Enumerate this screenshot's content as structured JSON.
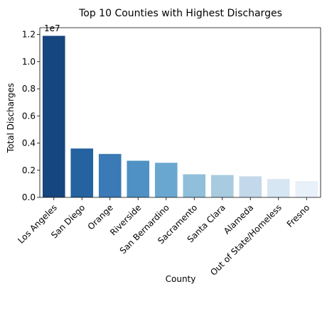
{
  "chart_data": {
    "type": "bar",
    "title": "Top 10 Counties with Highest Discharges",
    "xlabel": "County",
    "ylabel": "Total Discharges",
    "offset_text": "1e7",
    "ylim": [
      0,
      1.25
    ],
    "yticks": [
      0.0,
      0.2,
      0.4,
      0.6,
      0.8,
      1.0,
      1.2
    ],
    "ytick_labels": [
      "0.0",
      "0.2",
      "0.4",
      "0.6",
      "0.8",
      "1.0",
      "1.2"
    ],
    "categories": [
      "Los Angeles",
      "San Diego",
      "Orange",
      "Riverside",
      "San Bernardino",
      "Sacramento",
      "Santa Clara",
      "Alameda",
      "Out of State/Homeless",
      "Fresno"
    ],
    "values": [
      1.19,
      0.36,
      0.32,
      0.27,
      0.255,
      0.17,
      0.165,
      0.155,
      0.135,
      0.12
    ],
    "colors": [
      "#16467f",
      "#2462a0",
      "#3a7ab6",
      "#4f91c4",
      "#6aa7d0",
      "#8fbfda",
      "#a9cbe0",
      "#c3d8ea",
      "#d7e6f3",
      "#e8f0f9"
    ],
    "grid": false,
    "legend": "none"
  }
}
